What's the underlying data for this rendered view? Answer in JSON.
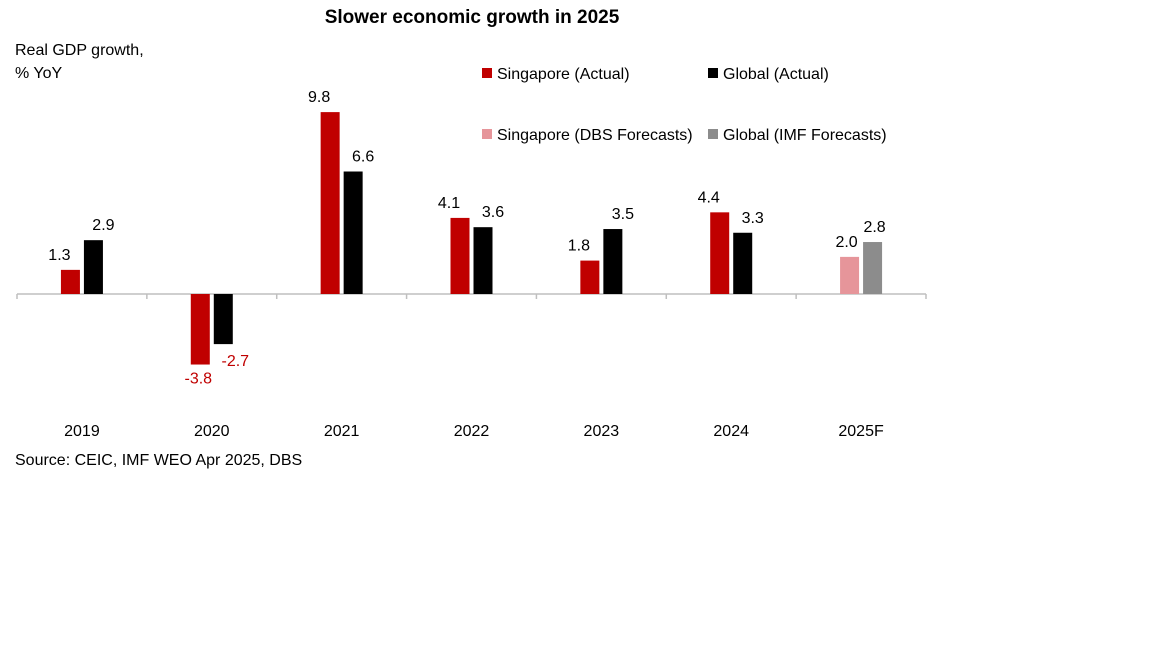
{
  "chart_data": {
    "type": "bar",
    "title": "Slower economic growth in 2025",
    "ylabel": [
      "Real GDP growth,",
      "% YoY"
    ],
    "categories": [
      "2019",
      "2020",
      "2021",
      "2022",
      "2023",
      "2024",
      "2025F"
    ],
    "series": [
      {
        "name": "Singapore (Actual)",
        "color": "#C00000",
        "values": [
          1.3,
          -3.8,
          9.8,
          4.1,
          1.8,
          4.4,
          null
        ]
      },
      {
        "name": "Global (Actual)",
        "color": "#000000",
        "values": [
          2.9,
          -2.7,
          6.6,
          3.6,
          3.5,
          3.3,
          null
        ]
      },
      {
        "name": "Singapore (DBS Forecasts)",
        "color": "#E6959A",
        "values": [
          null,
          null,
          null,
          null,
          null,
          null,
          2.0
        ]
      },
      {
        "name": "Global (IMF Forecasts)",
        "color": "#8C8C8C",
        "values": [
          null,
          null,
          null,
          null,
          null,
          null,
          2.8
        ]
      }
    ],
    "negative_label_color": "#C00000",
    "legend_position": "top-right",
    "grid": false
  },
  "source": "Source: CEIC, IMF WEO Apr 2025, DBS"
}
